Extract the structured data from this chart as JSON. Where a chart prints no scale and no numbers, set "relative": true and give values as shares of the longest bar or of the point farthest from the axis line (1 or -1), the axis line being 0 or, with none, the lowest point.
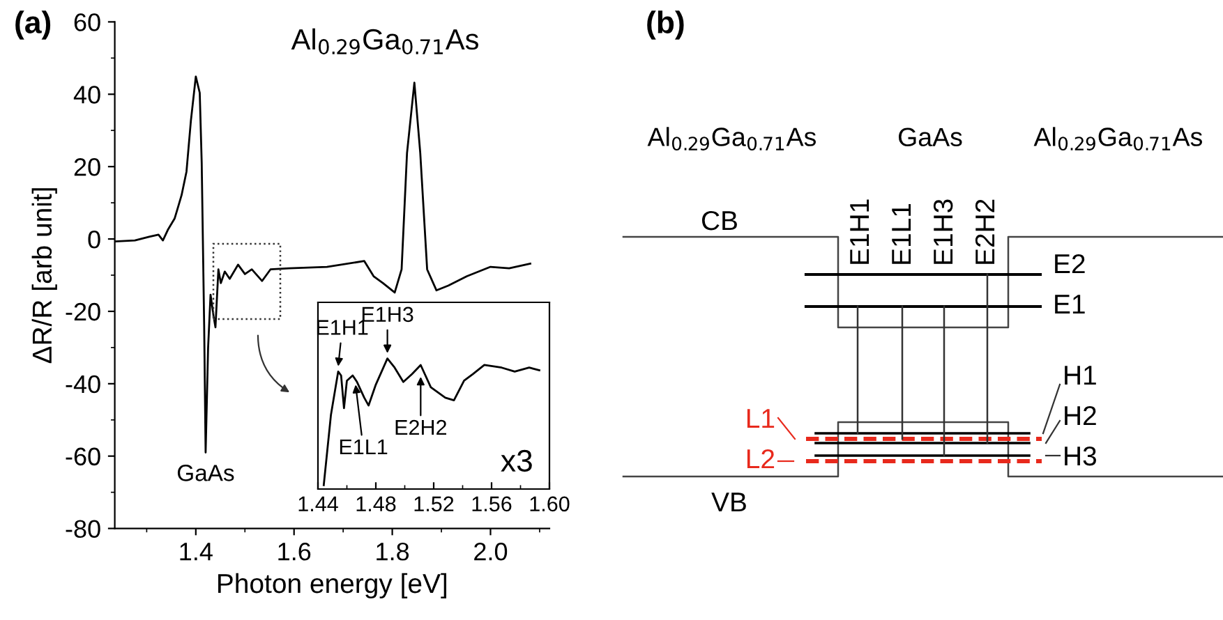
{
  "chart_data": [
    {
      "type": "line",
      "title": "(a)",
      "xlabel": "Photon energy [eV]",
      "ylabel": "ΔR/R [arb unit]",
      "xlim": [
        1.235,
        2.12
      ],
      "ylim": [
        -80,
        60
      ],
      "xticks": [
        1.4,
        1.6,
        1.8,
        {
          "value": 2.0,
          "label": "2.0"
        }
      ],
      "yticks": [
        -80,
        -60,
        -40,
        -20,
        0,
        20,
        40,
        60
      ],
      "grid": false,
      "marker": "none",
      "line_style": "solid",
      "series": [
        {
          "color": "#000000",
          "x": [
            1.235,
            1.276,
            1.305,
            1.324,
            1.333,
            1.343,
            1.357,
            1.371,
            1.381,
            1.39,
            1.4,
            1.408,
            1.412,
            1.417,
            1.42,
            1.425,
            1.43,
            1.436,
            1.44,
            1.446,
            1.451,
            1.459,
            1.469,
            1.486,
            1.5,
            1.514,
            1.535,
            1.552,
            1.59,
            1.667,
            1.743,
            1.762,
            1.781,
            1.805,
            1.819,
            1.83,
            1.845,
            1.857,
            1.871,
            1.89,
            1.914,
            1.952,
            2.0,
            2.038,
            2.081
          ],
          "values": [
            -0.7,
            -0.4,
            0.6,
            1.2,
            -0.4,
            2.5,
            5.7,
            12.1,
            18.6,
            32.7,
            44.9,
            40.4,
            21.1,
            -23.8,
            -59,
            -30.2,
            -15.4,
            -21.2,
            -24.4,
            -8.4,
            -12.2,
            -9,
            -11,
            -7.1,
            -9.7,
            -8.4,
            -11.6,
            -8.4,
            -8.1,
            -7.7,
            -6.1,
            -10.3,
            -12.2,
            -14.8,
            -8.4,
            23.7,
            43.2,
            23.7,
            -8.4,
            -14.2,
            -12.9,
            -10.3,
            -7.7,
            -8.1,
            -6.8
          ]
        }
      ],
      "annotations": [
        {
          "text": "GaAs",
          "x": 1.42,
          "y": -59
        },
        {
          "text": "Al$_{0.29}$Ga$_{0.71}$As",
          "x": 1.845,
          "y": 43.2
        }
      ]
    },
    {
      "type": "line",
      "relative": true,
      "xlim": [
        1.44,
        1.6
      ],
      "xticks": [
        1.44,
        1.48,
        1.52,
        1.56,
        {
          "value": 1.6,
          "label": "1.60"
        }
      ],
      "grid": false,
      "marker": "none",
      "line_style": "solid",
      "series": [
        {
          "color": "#000000",
          "x": [
            1.444,
            1.449,
            1.454,
            1.456,
            1.458,
            1.46,
            1.464,
            1.467,
            1.472,
            1.475,
            1.48,
            1.488,
            1.493,
            1.499,
            1.505,
            1.511,
            1.518,
            1.528,
            1.534,
            1.541,
            1.547,
            1.555,
            1.567,
            1.576,
            1.586,
            1.593
          ],
          "values": [
            0.03,
            0.57,
            0.9,
            0.87,
            0.62,
            0.83,
            0.87,
            0.82,
            0.7,
            0.64,
            0.8,
            1.0,
            0.93,
            0.82,
            0.88,
            0.95,
            0.78,
            0.7,
            0.68,
            0.83,
            0.88,
            0.95,
            0.93,
            0.9,
            0.93,
            0.91
          ]
        }
      ],
      "annotations": [
        {
          "text": "E1H1",
          "x": 1.454,
          "y": 0.9
        },
        {
          "text": "E1L1",
          "x": 1.466,
          "y": 0.84
        },
        {
          "text": "E1H3",
          "x": 1.488,
          "y": 1.0
        },
        {
          "text": "E2H2",
          "x": 1.511,
          "y": 0.9
        },
        "x3"
      ]
    },
    {
      "type": "other",
      "title": "(b)",
      "annotations": [
        "Al$_{0.29}$Ga$_{0.71}$As",
        "GaAs",
        "Al$_{0.29}$Ga$_{0.71}$As",
        "CB",
        "VB",
        "E1H1",
        "E1L1",
        "E1H3",
        "E2H2",
        "E2",
        "E1",
        "H1",
        "H2",
        "H3",
        "L1",
        "L2"
      ]
    }
  ]
}
